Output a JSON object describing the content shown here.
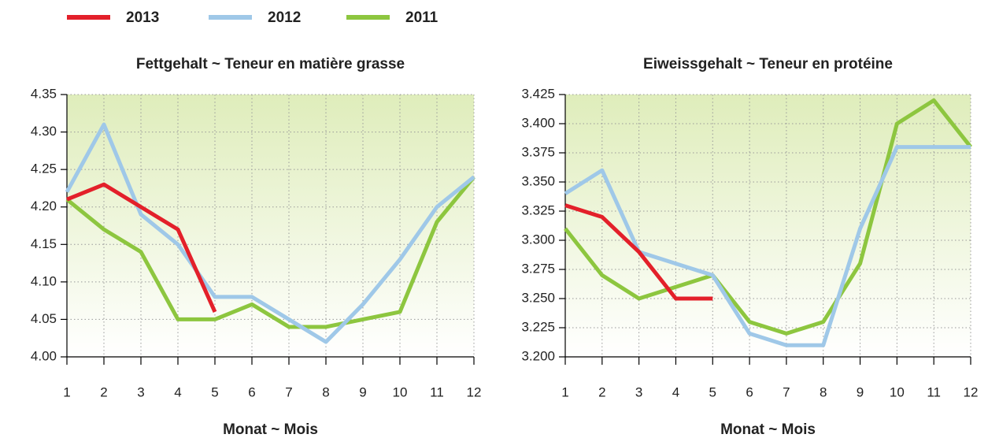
{
  "chart_data": [
    {
      "type": "line",
      "title": "Fettgehalt ~ Teneur en matière grasse",
      "x_label": "Monat ~ Mois",
      "x": [
        1,
        2,
        3,
        4,
        5,
        6,
        7,
        8,
        9,
        10,
        11,
        12
      ],
      "xlim": [
        1,
        12
      ],
      "xticks": [
        1,
        2,
        3,
        4,
        5,
        6,
        7,
        8,
        9,
        10,
        11,
        12
      ],
      "ylim": [
        4,
        4.35
      ],
      "yticks": [
        {
          "value": 4,
          "label": "4.00"
        },
        4.05,
        {
          "value": 4.1,
          "label": "4.10"
        },
        4.15,
        {
          "value": 4.2,
          "label": "4.20"
        },
        4.25,
        {
          "value": 4.3,
          "label": "4.30"
        },
        4.35
      ],
      "grid": true,
      "series": [
        {
          "name": "2013",
          "color": "#e3202a",
          "values": [
            4.21,
            4.23,
            4.2,
            4.17,
            4.06,
            null,
            null,
            null,
            null,
            null,
            null,
            null
          ]
        },
        {
          "name": "2012",
          "color": "#9fc8e8",
          "values": [
            4.22,
            4.31,
            4.19,
            4.15,
            4.08,
            4.08,
            4.05,
            4.02,
            4.07,
            4.13,
            4.2,
            4.24
          ]
        },
        {
          "name": "2011",
          "color": "#8dc63f",
          "values": [
            4.21,
            4.17,
            4.14,
            4.05,
            4.05,
            4.07,
            4.04,
            4.04,
            4.05,
            4.06,
            4.18,
            4.24
          ]
        }
      ]
    },
    {
      "type": "line",
      "title": "Eiweissgehalt ~ Teneur en protéine",
      "x_label": "Monat ~ Mois",
      "x": [
        1,
        2,
        3,
        4,
        5,
        6,
        7,
        8,
        9,
        10,
        11,
        12
      ],
      "xlim": [
        1,
        12
      ],
      "xticks": [
        1,
        2,
        3,
        4,
        5,
        6,
        7,
        8,
        9,
        10,
        11,
        12
      ],
      "ylim": [
        3.2,
        3.425
      ],
      "yticks": [
        {
          "value": 3.2,
          "label": "3.200"
        },
        3.225,
        {
          "value": 3.25,
          "label": "3.250"
        },
        3.275,
        {
          "value": 3.3,
          "label": "3.300"
        },
        3.325,
        {
          "value": 3.35,
          "label": "3.350"
        },
        3.375,
        {
          "value": 3.4,
          "label": "3.400"
        },
        3.425
      ],
      "grid": true,
      "series": [
        {
          "name": "2013",
          "color": "#e3202a",
          "values": [
            3.33,
            3.32,
            3.29,
            3.25,
            3.25,
            null,
            null,
            null,
            null,
            null,
            null,
            null
          ]
        },
        {
          "name": "2012",
          "color": "#9fc8e8",
          "values": [
            3.34,
            3.36,
            3.29,
            3.28,
            3.27,
            3.22,
            3.21,
            3.21,
            3.31,
            3.38,
            3.38,
            3.38
          ]
        },
        {
          "name": "2011",
          "color": "#8dc63f",
          "values": [
            3.31,
            3.27,
            3.25,
            3.26,
            3.27,
            3.23,
            3.22,
            3.23,
            3.28,
            3.4,
            3.42,
            3.38
          ]
        }
      ]
    }
  ]
}
